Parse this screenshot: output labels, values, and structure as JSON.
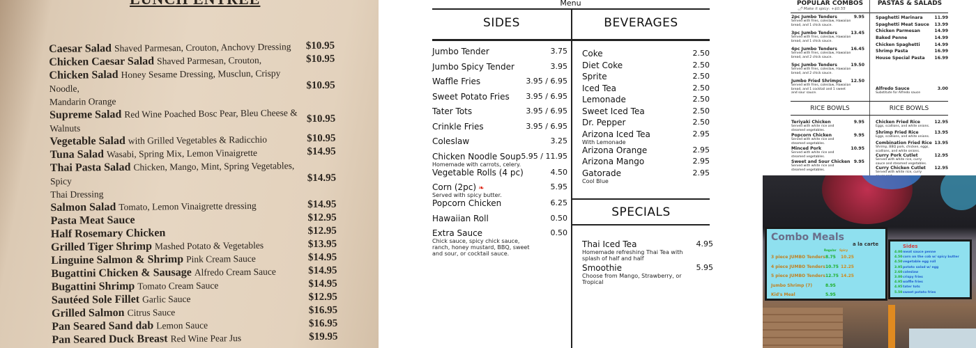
{
  "lunch_menu": {
    "title": "LUNCH ENTRÉE",
    "items": [
      {
        "name": "Caesar Salad",
        "desc": "Shaved Parmesan, Crouton, Anchovy Dressing",
        "price": "$10.95"
      },
      {
        "name": "Chicken Caesar Salad",
        "desc": "Shaved Parmesan, Crouton,",
        "price": "$10.95"
      },
      {
        "name": "Chicken Salad",
        "desc": "Honey Sesame Dressing, Musclun, Crispy Noodle,",
        "desc2": "Mandarin Orange",
        "price": "$10.95"
      },
      {
        "name": "Supreme Salad",
        "desc": "Red Wine Poached Bosc Pear, Bleu Cheese &",
        "desc2": "Walnuts",
        "price": "$10.95"
      },
      {
        "name": "Vegetable Salad",
        "desc": "with Grilled Vegetables & Radicchio",
        "price": "$10.95"
      },
      {
        "name": "Tuna Salad",
        "desc": "Wasabi, Spring Mix, Lemon Vinaigrette",
        "price": "$14.95"
      },
      {
        "name": "Thai Pasta Salad",
        "desc": "Chicken, Mango, Mint, Spring Vegetables, Spicy",
        "desc2": "Thai Dressing",
        "price": "$14.95"
      },
      {
        "name": "Salmon Salad",
        "desc": "Tomato, Lemon Vinaigrette dressing",
        "price": "$14.95"
      },
      {
        "name": "Pasta Meat Sauce",
        "desc": "",
        "price": "$12.95"
      },
      {
        "name": "Half Rosemary Chicken",
        "desc": "",
        "price": "$12.95"
      },
      {
        "name": "Grilled Tiger Shrimp",
        "desc": "Mashed Potato & Vegetables",
        "price": "$13.95"
      },
      {
        "name": "Linguine Salmon & Shrimp",
        "desc": "Pink Cream Sauce",
        "price": "$14.95"
      },
      {
        "name": "Bugattini Chicken & Sausage",
        "desc": "Alfredo Cream Sauce",
        "price": "$14.95"
      },
      {
        "name": "Bugattini Shrimp",
        "desc": "Tomato Cream Sauce",
        "price": "$14.95"
      },
      {
        "name": "Sautéed Sole Fillet",
        "desc": "Garlic Sauce",
        "price": "$12.95"
      },
      {
        "name": "Grilled Salmon",
        "desc": "Citrus Sauce",
        "price": "$16.95"
      },
      {
        "name": "Pan Seared Sand dab",
        "desc": "Lemon Sauce",
        "price": "$16.95"
      },
      {
        "name": "Pan Seared Duck Breast",
        "desc": "Red Wine Pear Jus",
        "price": "$19.95"
      }
    ]
  },
  "main_menu": {
    "top_label": "Menu",
    "sides": {
      "heading": "SIDES",
      "items": [
        {
          "name": "Jumbo Tender",
          "price": "3.75"
        },
        {
          "name": "Jumbo Spicy Tender",
          "price": "3.95"
        },
        {
          "name": "Waffle Fries",
          "price": "3.95 / 6.95"
        },
        {
          "name": "Sweet Potato Fries",
          "price": "3.95 / 6.95"
        },
        {
          "name": "Tater Tots",
          "price": "3.95 / 6.95"
        },
        {
          "name": "Crinkle Fries",
          "price": "3.95 / 6.95"
        },
        {
          "name": "Coleslaw",
          "price": "3.25"
        },
        {
          "name": "Chicken Noodle Soup",
          "sub": "Homemade with carrots, celery.",
          "price": "5.95 / 11.95"
        },
        {
          "name": "Vegetable Rolls (4 pc)",
          "price": "4.50"
        },
        {
          "name": "Corn (2pc)",
          "sub": "Served with spicy butter.",
          "price": "5.95",
          "icon": "chili-pepper-icon"
        },
        {
          "name": "Popcorn Chicken",
          "price": "6.25"
        },
        {
          "name": "Hawaiian Roll",
          "price": "0.50"
        },
        {
          "name": "Extra Sauce",
          "sub": "Chick sauce, spicy chick sauce, ranch, honey mustard, BBQ, sweet and sour, or cocktail sauce.",
          "price": "0.50"
        }
      ]
    },
    "beverages": {
      "heading": "BEVERAGES",
      "items": [
        {
          "name": "Coke",
          "price": "2.50"
        },
        {
          "name": "Diet Coke",
          "price": "2.50"
        },
        {
          "name": "Sprite",
          "price": "2.50"
        },
        {
          "name": "Iced Tea",
          "price": "2.50"
        },
        {
          "name": "Lemonade",
          "price": "2.50"
        },
        {
          "name": "Sweet Iced Tea",
          "price": "2.50"
        },
        {
          "name": "Dr. Pepper",
          "price": "2.50"
        },
        {
          "name": "Arizona Iced Tea",
          "sub": "With Lemonade",
          "price": "2.95"
        },
        {
          "name": "Arizona Orange",
          "price": "2.95"
        },
        {
          "name": "Arizona Mango",
          "price": "2.95"
        },
        {
          "name": "Gatorade",
          "sub": "Cool Blue",
          "price": "2.95"
        }
      ]
    },
    "specials": {
      "heading": "SPECIALS",
      "items": [
        {
          "name": "Thai Iced Tea",
          "sub": "Homemade refreshing Thai Tea with splash of half and half",
          "price": "4.95"
        },
        {
          "name": "Smoothie",
          "sub": "Choose from Mango, Strawberry, or Tropical",
          "price": "5.95"
        }
      ]
    }
  },
  "combo_menu": {
    "left_heading": "POPULAR COMBOS",
    "spicy_note": "Make it spicy: +$0.55",
    "right_heading": "PASTAS & SALADS",
    "combos": [
      {
        "name": "2pc Jumbo Tenders",
        "sub": "Served with fries, coleslaw, Hawaiian bread, and 1 chick sauce.",
        "price": "9.95"
      },
      {
        "name": "3pc Jumbo Tenders",
        "sub": "Served with fries, coleslaw, Hawaiian bread, and 1 chick sauce.",
        "price": "13.45"
      },
      {
        "name": "4pc Jumbo Tenders",
        "sub": "Served with fries, coleslaw, Hawaiian bread, and 2 chick sauce.",
        "price": "16.45"
      },
      {
        "name": "5pc Jumbo Tenders",
        "sub": "Served with fries, coleslaw, Hawaiian bread, and 2 chick sauce.",
        "price": "19.50"
      },
      {
        "name": "Jumbo Fried Shrimps",
        "sub": "Served with fries, coleslaw, Hawaiian bread, and 1 cocktail and 1 sweet and sour sauce.",
        "price": "12.50"
      }
    ],
    "pastas": [
      {
        "name": "Spaghetti Marinara",
        "price": "11.99"
      },
      {
        "name": "Spaghetti Meat Sauce",
        "price": "13.99"
      },
      {
        "name": "Chicken Parmesan",
        "price": "14.99"
      },
      {
        "name": "Baked Penne",
        "price": "14.99"
      },
      {
        "name": "Chicken Spaghetti",
        "price": "14.99"
      },
      {
        "name": "Shrimp Pasta",
        "price": "16.99"
      },
      {
        "name": "House Special Pasta",
        "price": "16.99"
      }
    ],
    "alfredo": {
      "name": "Alfredo Sauce",
      "sub": "Substitute for Alfredo sauce",
      "price": "3.00"
    },
    "rice_heading_left": "RICE BOWLS",
    "rice_heading_right": "RICE BOWLS",
    "rice_left": [
      {
        "name": "Teriyaki Chicken",
        "sub": "Served with white rice and steamed vegetables.",
        "price": "9.95"
      },
      {
        "name": "Popcorn Chicken",
        "sub": "Served with white rice and steamed vegetables.",
        "price": "9.95"
      },
      {
        "name": "Minced Pork",
        "sub": "Served with white rice and steamed vegetables.",
        "price": "10.95"
      },
      {
        "name": "Sweet and Sour Chicken",
        "sub": "Served with white rice and steamed vegetables.",
        "price": "9.95"
      }
    ],
    "rice_right": [
      {
        "name": "Chicken Fried Rice",
        "sub": "Eggs, scallions, and white onions.",
        "price": "12.95"
      },
      {
        "name": "Shrimp Fried Rice",
        "sub": "Eggs, scallions, and white onions.",
        "price": "13.95"
      },
      {
        "name": "Combination Fried Rice",
        "sub": "Shrimp, BBQ pork, chicken, eggs, scallions, and white onions.",
        "price": "13.95"
      },
      {
        "name": "Curry Pork Cutlet",
        "sub": "Served with white rice, curry sauce and steamed vegetables.",
        "price": "12.95"
      },
      {
        "name": "Curry Chicken Cutlet",
        "sub": "Served with white rice, curry sauce and",
        "price": "12.95"
      }
    ]
  },
  "photo_board": {
    "screen1_title": "Combo Meals",
    "screen1_sub": "a la carte",
    "screen1_cols": [
      "Regular",
      "Spicy"
    ],
    "screen1_rows": [
      {
        "name": "3 piece JUMBO Tenders",
        "price": "8.75",
        "spicy": "10.25"
      },
      {
        "name": "4 piece JUMBO Tenders",
        "price": "10.75",
        "spicy": "12.25"
      },
      {
        "name": "5 piece JUMBO Tenders",
        "price": "12.75",
        "spicy": "14.25"
      },
      {
        "name": "Jumbo Shrimp (7)",
        "price": "8.95"
      },
      {
        "name": "Kid's Meal",
        "price": "5.95"
      }
    ],
    "screen2_title": "Sides",
    "screen2_rows": [
      {
        "price": "4.00",
        "name": "meat sauce penne"
      },
      {
        "price": "4.50",
        "name": "corn on the cob w/ spicy butter"
      },
      {
        "price": "4.50",
        "name": "vegetable egg roll"
      },
      {
        "price": "3.95",
        "name": "potato salad w/ egg"
      },
      {
        "price": "2.60",
        "name": "coleslaw"
      },
      {
        "price": "3.00",
        "name": "crispy fries"
      },
      {
        "price": "4.95",
        "name": "waffle fries"
      },
      {
        "price": "4.95",
        "name": "tater tots"
      },
      {
        "price": "5.50",
        "name": "sweet potato fries"
      }
    ],
    "colors": {
      "screen": "#8fe0ef",
      "title": "#6a6e8a",
      "price_green": "#1fae2a",
      "item_orange": "#d08a1a",
      "side_blue": "#2060d0"
    }
  }
}
